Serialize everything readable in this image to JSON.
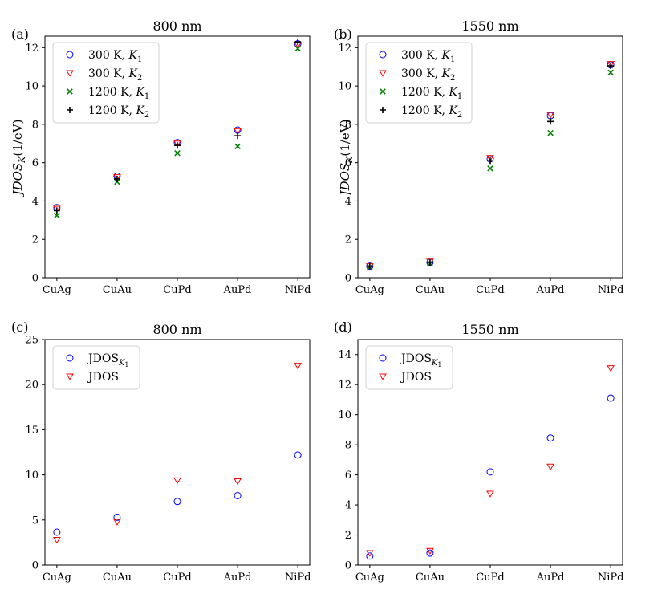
{
  "chart_data": [
    {
      "panel_label": "(a)",
      "type": "scatter",
      "title": "800 nm",
      "ylabel": "JDOS_K(1/eV)",
      "ylabel_main": "JDOS",
      "ylabel_sub": "K",
      "ylabel_unit": "(1/eV)",
      "categories": [
        "CuAg",
        "CuAu",
        "CuPd",
        "AuPd",
        "NiPd"
      ],
      "ylim": [
        0,
        12.6
      ],
      "yticks": [
        0,
        2,
        4,
        6,
        8,
        10,
        12
      ],
      "legend_position": "upper-left",
      "series": [
        {
          "name": "300 K, K1",
          "legend_text": "300 K, ",
          "legend_math": "K",
          "legend_sub": "1",
          "marker": "circle",
          "color": "#0000ff",
          "values": [
            3.65,
            5.3,
            7.05,
            7.7,
            12.2
          ]
        },
        {
          "name": "300 K, K2",
          "legend_text": "300 K, ",
          "legend_math": "K",
          "legend_sub": "2",
          "marker": "triangle-down",
          "color": "#ff0000",
          "values": [
            3.6,
            5.25,
            7.0,
            7.65,
            12.15
          ]
        },
        {
          "name": "1200 K, K1",
          "legend_text": "1200 K, ",
          "legend_math": "K",
          "legend_sub": "1",
          "marker": "x",
          "color": "#008000",
          "values": [
            3.25,
            5.0,
            6.5,
            6.85,
            11.95
          ]
        },
        {
          "name": "1200 K, K2",
          "legend_text": "1200 K, ",
          "legend_math": "K",
          "legend_sub": "2",
          "marker": "plus",
          "color": "#000000",
          "values": [
            3.5,
            5.15,
            6.9,
            7.4,
            12.3
          ]
        }
      ]
    },
    {
      "panel_label": "(b)",
      "type": "scatter",
      "title": "1550 nm",
      "ylabel": "JDOS_K(1/eV)",
      "ylabel_main": "JDOS",
      "ylabel_sub": "K",
      "ylabel_unit": "(1/eV)",
      "categories": [
        "CuAg",
        "CuAu",
        "CuPd",
        "AuPd",
        "NiPd"
      ],
      "ylim": [
        0,
        12.6
      ],
      "yticks": [
        0,
        2,
        4,
        6,
        8,
        10,
        12
      ],
      "legend_position": "upper-left",
      "series": [
        {
          "name": "300 K, K1",
          "legend_text": "300 K, ",
          "legend_math": "K",
          "legend_sub": "1",
          "marker": "circle",
          "color": "#0000ff",
          "values": [
            0.6,
            0.8,
            6.2,
            8.45,
            11.1
          ]
        },
        {
          "name": "300 K, K2",
          "legend_text": "300 K, ",
          "legend_math": "K",
          "legend_sub": "2",
          "marker": "triangle-down",
          "color": "#ff0000",
          "values": [
            0.6,
            0.85,
            6.25,
            8.5,
            11.15
          ]
        },
        {
          "name": "1200 K, K1",
          "legend_text": "1200 K, ",
          "legend_math": "K",
          "legend_sub": "1",
          "marker": "x",
          "color": "#008000",
          "values": [
            0.55,
            0.75,
            5.7,
            7.55,
            10.7
          ]
        },
        {
          "name": "1200 K, K2",
          "legend_text": "1200 K, ",
          "legend_math": "K",
          "legend_sub": "2",
          "marker": "plus",
          "color": "#000000",
          "values": [
            0.6,
            0.8,
            6.1,
            8.15,
            11.05
          ]
        }
      ]
    },
    {
      "panel_label": "(c)",
      "type": "scatter",
      "title": "800 nm",
      "ylabel": "",
      "categories": [
        "CuAg",
        "CuAu",
        "CuPd",
        "AuPd",
        "NiPd"
      ],
      "ylim": [
        0,
        25
      ],
      "yticks": [
        0,
        5,
        10,
        15,
        20,
        25
      ],
      "legend_position": "upper-left",
      "series": [
        {
          "name": "JDOS_K1",
          "legend_text": "JDOS",
          "legend_math": "",
          "legend_sub": "K1",
          "marker": "circle",
          "color": "#0000ff",
          "values": [
            3.65,
            5.3,
            7.05,
            7.7,
            12.2
          ]
        },
        {
          "name": "JDOS",
          "legend_text": "JDOS",
          "legend_math": "",
          "legend_sub": "",
          "marker": "triangle-down",
          "color": "#ff0000",
          "values": [
            2.8,
            4.8,
            9.4,
            9.3,
            22.1
          ]
        }
      ]
    },
    {
      "panel_label": "(d)",
      "type": "scatter",
      "title": "1550 nm",
      "ylabel": "",
      "categories": [
        "CuAg",
        "CuAu",
        "CuPd",
        "AuPd",
        "NiPd"
      ],
      "ylim": [
        0,
        15
      ],
      "yticks": [
        0,
        2,
        4,
        6,
        8,
        10,
        12,
        14
      ],
      "legend_position": "upper-left",
      "series": [
        {
          "name": "JDOS_K1",
          "legend_text": "JDOS",
          "legend_math": "",
          "legend_sub": "K1",
          "marker": "circle",
          "color": "#0000ff",
          "values": [
            0.6,
            0.8,
            6.2,
            8.45,
            11.1
          ]
        },
        {
          "name": "JDOS",
          "legend_text": "JDOS",
          "legend_math": "",
          "legend_sub": "",
          "marker": "triangle-down",
          "color": "#ff0000",
          "values": [
            0.8,
            0.95,
            4.75,
            6.55,
            13.1
          ]
        }
      ]
    }
  ]
}
